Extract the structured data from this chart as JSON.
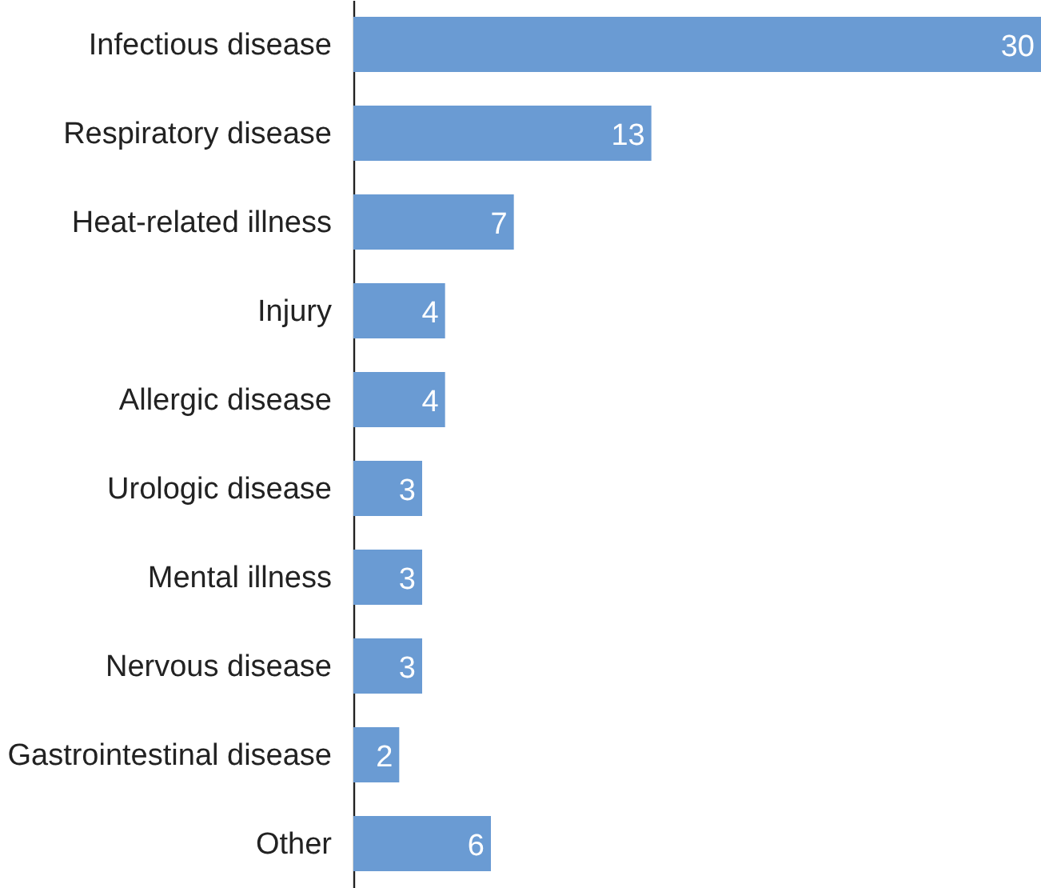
{
  "chart_data": {
    "type": "bar",
    "orientation": "horizontal",
    "categories": [
      "Infectious disease",
      "Respiratory disease",
      "Heat-related illness",
      "Injury",
      "Allergic disease",
      "Urologic disease",
      "Mental illness",
      "Nervous disease",
      "Gastrointestinal disease",
      "Other"
    ],
    "values": [
      30,
      13,
      7,
      4,
      4,
      3,
      3,
      3,
      2,
      6
    ],
    "color": "#6a9bd3",
    "data_labels": true
  }
}
